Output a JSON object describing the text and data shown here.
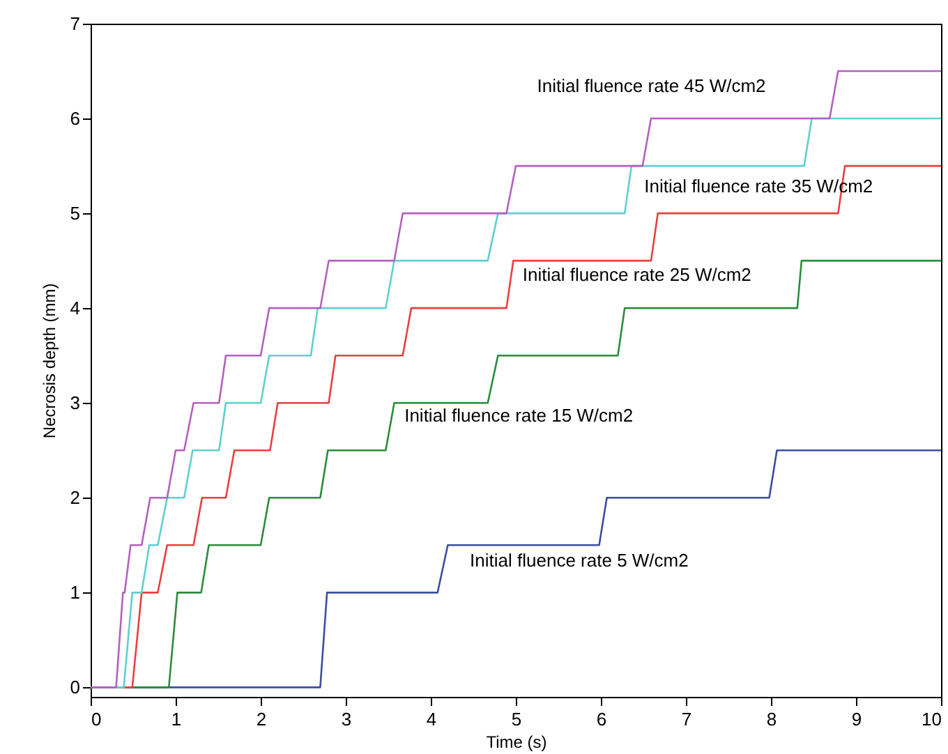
{
  "chart_data": {
    "type": "line",
    "xlabel": "Time (s)",
    "ylabel": "Necrosis depth (mm)",
    "xlim": [
      0,
      10
    ],
    "ylim": [
      -0.1,
      7
    ],
    "xticks": [
      0,
      1,
      2,
      3,
      4,
      5,
      6,
      7,
      8,
      9,
      10
    ],
    "yticks": [
      0,
      1,
      2,
      3,
      4,
      5,
      6,
      7
    ],
    "grid": false,
    "marker": "none",
    "line_style": "solid",
    "series": [
      {
        "name": "Initial fluence rate 5 W/cm2",
        "color": "#3c4ea0",
        "x": [
          0,
          2.7,
          2.78,
          4.08,
          4.2,
          5.98,
          6.07,
          7.98,
          8.07,
          10
        ],
        "values": [
          0,
          0,
          1,
          1,
          1.5,
          1.5,
          2,
          2,
          2.5,
          2.5
        ]
      },
      {
        "name": "Initial fluence rate 15 W/cm2",
        "color": "#2a8c3c",
        "x": [
          0,
          0.92,
          1.02,
          1.3,
          1.39,
          2.0,
          2.1,
          2.7,
          2.79,
          3.47,
          3.57,
          4.67,
          4.79,
          6.2,
          6.28,
          8.31,
          8.36,
          10
        ],
        "values": [
          0,
          0,
          1,
          1,
          1.5,
          1.5,
          2,
          2,
          2.5,
          2.5,
          3,
          3,
          3.5,
          3.5,
          4,
          4,
          4.5,
          4.5
        ]
      },
      {
        "name": "Initial fluence rate 25 W/cm2",
        "color": "#e8403c",
        "x": [
          0,
          0.49,
          0.6,
          0.79,
          0.9,
          1.21,
          1.31,
          1.59,
          1.69,
          2.11,
          2.2,
          2.8,
          2.88,
          3.67,
          3.77,
          4.89,
          4.97,
          6.59,
          6.67,
          8.79,
          8.87,
          10
        ],
        "values": [
          0,
          0,
          1,
          1,
          1.5,
          1.5,
          2,
          2,
          2.5,
          2.5,
          3,
          3,
          3.5,
          3.5,
          4,
          4,
          4.5,
          4.5,
          5,
          5,
          5.5,
          5.5
        ]
      },
      {
        "name": "Initial fluence rate 35 W/cm2",
        "color": "#5fcfcf",
        "x": [
          0,
          0.39,
          0.49,
          0.6,
          0.69,
          0.79,
          0.9,
          1.1,
          1.2,
          1.51,
          1.59,
          2.0,
          2.1,
          2.59,
          2.67,
          3.47,
          3.57,
          4.67,
          4.79,
          6.28,
          6.36,
          8.39,
          8.48,
          10
        ],
        "values": [
          0,
          0,
          1,
          1,
          1.5,
          1.5,
          2,
          2,
          2.5,
          2.5,
          3,
          3,
          3.5,
          3.5,
          4,
          4,
          4.5,
          4.5,
          5,
          5,
          5.5,
          5.5,
          6,
          6
        ]
      },
      {
        "name": "Initial fluence rate 45 W/cm2",
        "color": "#b45fbe",
        "x": [
          0,
          0.3,
          0.38,
          0.4,
          0.47,
          0.6,
          0.7,
          0.9,
          1.0,
          1.1,
          1.21,
          1.51,
          1.59,
          2.0,
          2.1,
          2.7,
          2.8,
          3.57,
          3.67,
          4.89,
          5.0,
          6.49,
          6.59,
          8.69,
          8.79,
          10
        ],
        "values": [
          0,
          0,
          1,
          1,
          1.5,
          1.5,
          2,
          2,
          2.5,
          2.5,
          3,
          3,
          3.5,
          3.5,
          4,
          4,
          4.5,
          4.5,
          5,
          5,
          5.5,
          5.5,
          6,
          6,
          6.5,
          6.5
        ]
      }
    ]
  }
}
